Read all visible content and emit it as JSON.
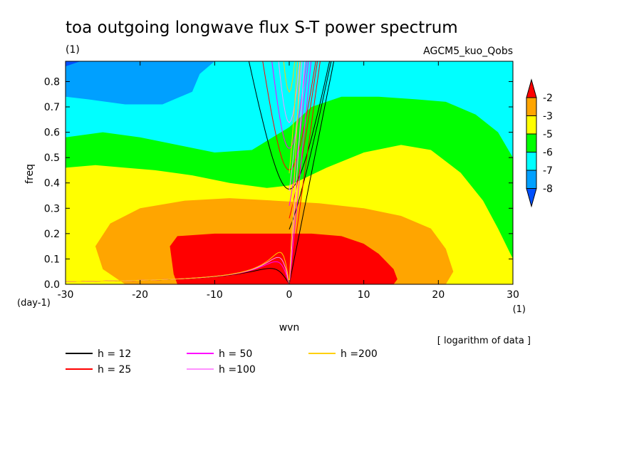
{
  "chart_data": {
    "type": "contour",
    "title": "toa outgoing longwave flux S-T power spectrum",
    "units_label": "(1)",
    "experiment": "AGCM5_kuo_Qobs",
    "xlabel": "wvn",
    "ylabel": "freq",
    "x_unit": "(1)",
    "y_unit": "(day-1)",
    "xlim": [
      -30,
      30
    ],
    "ylim": [
      0.0,
      0.88
    ],
    "x_ticks": [
      -30,
      -20,
      -10,
      0,
      10,
      20,
      30
    ],
    "x_tick_labels": [
      "-30",
      "-20",
      "-10",
      "0",
      "10",
      "20",
      "30"
    ],
    "y_ticks": [
      0.0,
      0.1,
      0.2,
      0.3,
      0.4,
      0.5,
      0.6,
      0.7,
      0.8
    ],
    "y_tick_labels": [
      "0.0",
      "0.1",
      "0.2",
      "0.3",
      "0.4",
      "0.5",
      "0.6",
      "0.7",
      "0.8"
    ],
    "note": "[ logarithm of data ]",
    "colorbar": {
      "levels": [
        -2,
        -3,
        -5,
        -6,
        -7,
        -8
      ],
      "level_labels": [
        "-2",
        "-3",
        "-5",
        "-6",
        "-7",
        "-8"
      ],
      "colors": [
        "#ff0000",
        "#ffa500",
        "#ffff00",
        "#00ff00",
        "#00ffff",
        "#00a0ff",
        "#0050ff"
      ]
    },
    "fill_regions": [
      {
        "level": "-7",
        "color": "#00ffff",
        "points": [
          [
            -30,
            0.88
          ],
          [
            30,
            0.88
          ],
          [
            30,
            0.0
          ],
          [
            -30,
            0.0
          ]
        ]
      },
      {
        "level": "-6",
        "color": "#00ff00",
        "points": [
          [
            -30,
            0.58
          ],
          [
            -25,
            0.6
          ],
          [
            -20,
            0.58
          ],
          [
            -15,
            0.55
          ],
          [
            -10,
            0.52
          ],
          [
            -5,
            0.53
          ],
          [
            0,
            0.62
          ],
          [
            3,
            0.7
          ],
          [
            7,
            0.74
          ],
          [
            12,
            0.74
          ],
          [
            17,
            0.73
          ],
          [
            21,
            0.72
          ],
          [
            25,
            0.67
          ],
          [
            28,
            0.6
          ],
          [
            30,
            0.5
          ],
          [
            30,
            0.0
          ],
          [
            -30,
            0.0
          ]
        ]
      },
      {
        "level": "-5",
        "color": "#ffff00",
        "points": [
          [
            -30,
            0.46
          ],
          [
            -26,
            0.47
          ],
          [
            -22,
            0.46
          ],
          [
            -18,
            0.45
          ],
          [
            -13,
            0.43
          ],
          [
            -8,
            0.4
          ],
          [
            -3,
            0.38
          ],
          [
            0,
            0.39
          ],
          [
            5,
            0.46
          ],
          [
            10,
            0.52
          ],
          [
            15,
            0.55
          ],
          [
            19,
            0.53
          ],
          [
            23,
            0.44
          ],
          [
            26,
            0.33
          ],
          [
            28,
            0.22
          ],
          [
            30,
            0.1
          ],
          [
            30,
            0.0
          ],
          [
            -30,
            0.0
          ]
        ]
      },
      {
        "level": "-3",
        "color": "#ffa500",
        "points": [
          [
            -22,
            0.0
          ],
          [
            -25,
            0.06
          ],
          [
            -26,
            0.15
          ],
          [
            -24,
            0.24
          ],
          [
            -20,
            0.3
          ],
          [
            -14,
            0.33
          ],
          [
            -8,
            0.34
          ],
          [
            -2,
            0.33
          ],
          [
            4,
            0.32
          ],
          [
            10,
            0.3
          ],
          [
            15,
            0.27
          ],
          [
            19,
            0.22
          ],
          [
            21,
            0.14
          ],
          [
            22,
            0.05
          ],
          [
            21,
            0.0
          ]
        ]
      },
      {
        "level": "-2",
        "color": "#ff0000",
        "points": [
          [
            -15,
            0.0
          ],
          [
            -15.5,
            0.04
          ],
          [
            -16,
            0.15
          ],
          [
            -15,
            0.19
          ],
          [
            -10,
            0.2
          ],
          [
            -4,
            0.2
          ],
          [
            3,
            0.2
          ],
          [
            7,
            0.19
          ],
          [
            10,
            0.16
          ],
          [
            12,
            0.12
          ],
          [
            14,
            0.06
          ],
          [
            14.5,
            0.02
          ],
          [
            14,
            0.0
          ]
        ]
      },
      {
        "level": "-8",
        "color": "#00a0ff",
        "points": [
          [
            -30,
            0.88
          ],
          [
            -10,
            0.88
          ],
          [
            -12,
            0.83
          ],
          [
            -13,
            0.76
          ],
          [
            -17,
            0.71
          ],
          [
            -22,
            0.71
          ],
          [
            -27,
            0.73
          ],
          [
            -30,
            0.74
          ]
        ]
      },
      {
        "level": "-8+",
        "color": "#0050ff",
        "points": [
          [
            -30,
            0.88
          ],
          [
            -28,
            0.88
          ],
          [
            -30,
            0.86
          ]
        ]
      }
    ],
    "dispersion_curves": [
      {
        "label": "h = 12",
        "h": 12,
        "color": "#000000"
      },
      {
        "label": "h = 25",
        "h": 25,
        "color": "#ff0000"
      },
      {
        "label": "h = 50",
        "h": 50,
        "color": "#ff00ff"
      },
      {
        "label": "h =100",
        "h": 100,
        "color": "#ff90ff"
      },
      {
        "label": "h =200",
        "h": 200,
        "color": "#ffd000"
      }
    ]
  }
}
